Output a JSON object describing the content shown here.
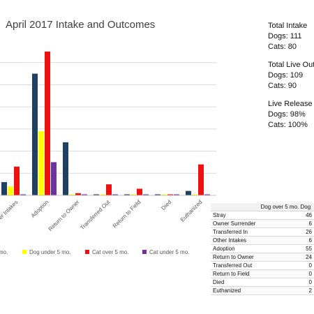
{
  "chart_data": {
    "type": "bar",
    "title": "April  2017 Intake and Outcomes",
    "categories": [
      "Other Intakes",
      "Adoption",
      "Return to Owner",
      "Transferred Out",
      "Return to Field",
      "Died",
      "Euthanized"
    ],
    "category_labels": [
      "er Intakes",
      "Adoption",
      "Return to Owner",
      "Transferred Out",
      "Return to Field",
      "Died",
      "Euthanized"
    ],
    "series": [
      {
        "name": "Dog over 5 mo.",
        "legend_label": "mo.",
        "color": "#1f3f63",
        "values": [
          6,
          55,
          24,
          0,
          0,
          0,
          2
        ]
      },
      {
        "name": "Dog under 5 mo.",
        "color": "#ffff00",
        "values": [
          4,
          29,
          0,
          0,
          0,
          0,
          0
        ]
      },
      {
        "name": "Cat over 5 mo.",
        "color": "#ee1111",
        "values": [
          13,
          65,
          1,
          5,
          3,
          0,
          14
        ]
      },
      {
        "name": "Cat under 5 mo.",
        "color": "#7030a0",
        "values": [
          0,
          15,
          0,
          0,
          0,
          0,
          0
        ]
      }
    ],
    "ylim": [
      0,
      70
    ],
    "legend_position": "bottom",
    "grid": true
  },
  "stats": {
    "total_intake": {
      "heading": "Total Intake",
      "dogs": "Dogs: 111",
      "cats": "Cats: 80"
    },
    "total_live_outcomes": {
      "heading": "Total Live Outc",
      "dogs": "Dogs: 109",
      "cats": "Cats: 90"
    },
    "live_release_rate": {
      "heading": "Live Release R",
      "dogs": "Dogs: 98%",
      "cats": "Cats: 100%"
    }
  },
  "table": {
    "header": "Dog over 5 mo.  Dog",
    "rows": [
      {
        "label": "Stray",
        "value": "46"
      },
      {
        "label": "Owner Surrender",
        "value": "6"
      },
      {
        "label": "Transferred In",
        "value": "26"
      },
      {
        "label": "Other Intakes",
        "value": "6"
      },
      {
        "label": "Adoption",
        "value": "55"
      },
      {
        "label": "Return to Owner",
        "value": "24"
      },
      {
        "label": "Transferred Out",
        "value": "0"
      },
      {
        "label": "Return to Field",
        "value": "0"
      },
      {
        "label": "Died",
        "value": "0"
      },
      {
        "label": "Euthanized",
        "value": "2"
      }
    ]
  }
}
